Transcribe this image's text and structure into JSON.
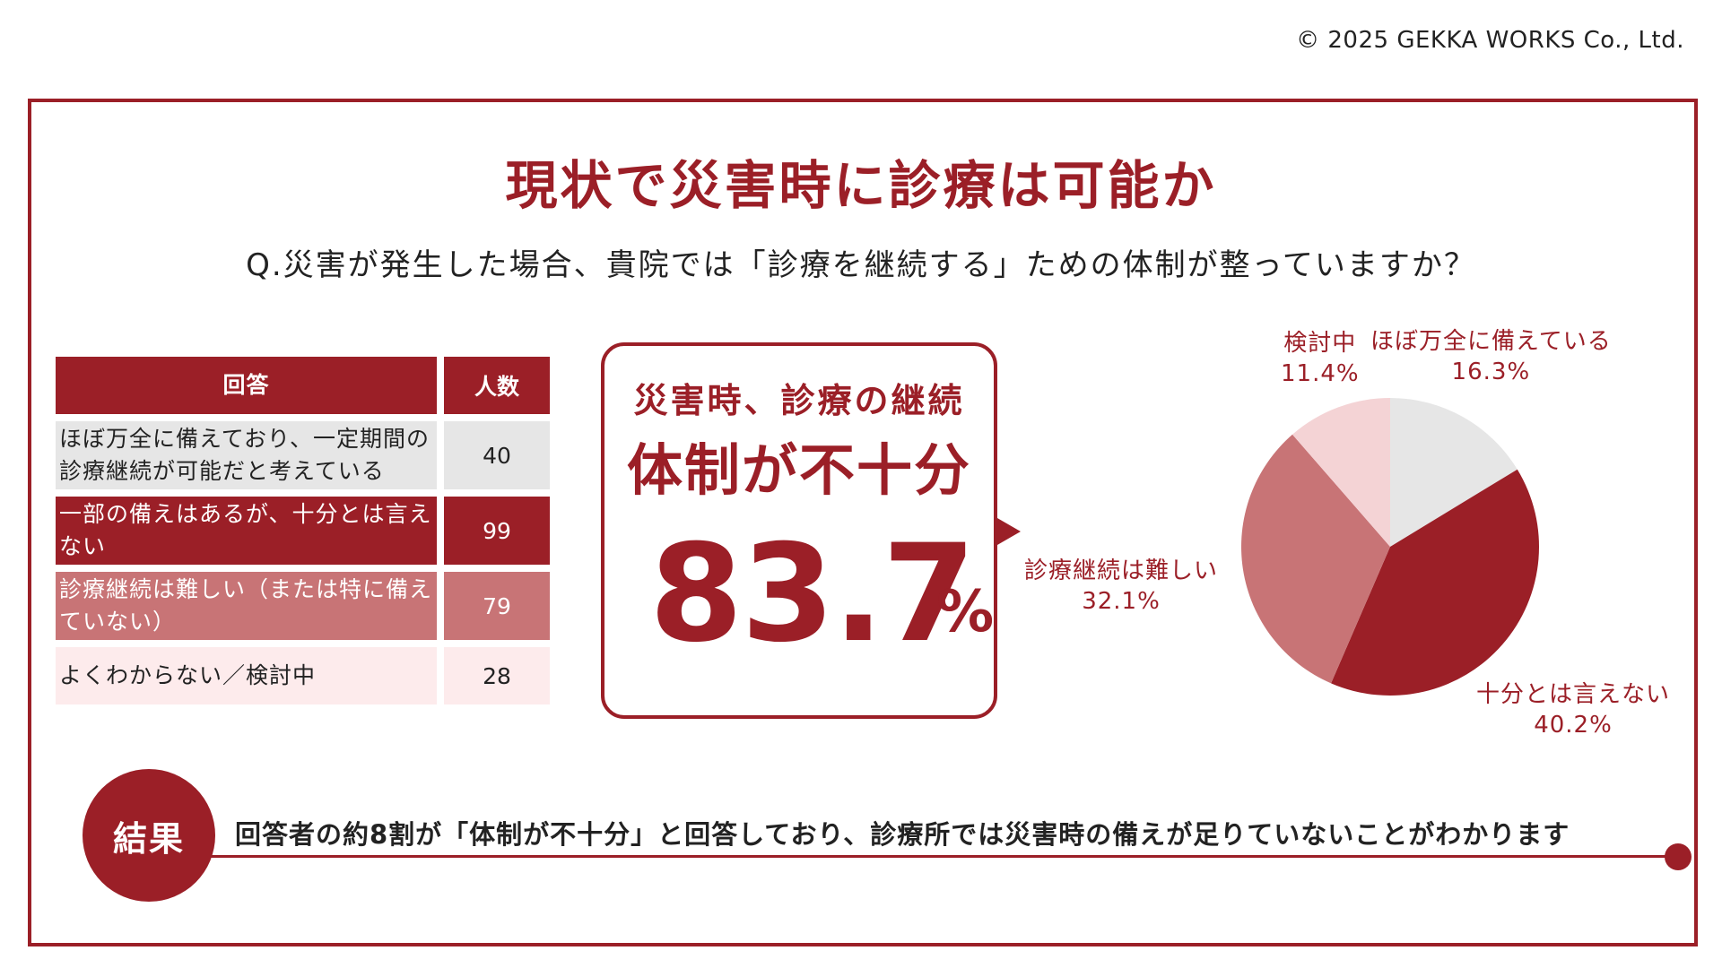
{
  "copyright": "© 2025 GEKKA WORKS Co., Ltd.",
  "title": "現状で災害時に診療は可能か",
  "question": "Q.災害が発生した場合、貴院では「診療を継続する」ための体制が整っていますか？",
  "table": {
    "headers": [
      "回答",
      "人数"
    ],
    "rows": [
      {
        "answer": "ほぼ万全に備えており、一定期間の診療継続が可能だと考えている",
        "count": "40"
      },
      {
        "answer": "一部の備えはあるが、十分とは言えない",
        "count": "99"
      },
      {
        "answer": "診療継続は難しい（または特に備えていない）",
        "count": "79"
      },
      {
        "answer": "よくわからない／検討中",
        "count": "28"
      }
    ]
  },
  "callout": {
    "line1": "災害時、診療の継続",
    "line2": "体制が不十分",
    "value": "83.7",
    "unit": "%"
  },
  "chart_data": {
    "type": "pie",
    "slices": [
      {
        "label": "ほぼ万全に備えている",
        "value": 16.3,
        "display": "16.3%",
        "color": "#e6e6e6"
      },
      {
        "label": "十分とは言えない",
        "value": 40.2,
        "display": "40.2%",
        "color": "#9b1f27"
      },
      {
        "label": "診療継続は難しい",
        "value": 32.1,
        "display": "32.1%",
        "color": "#c87476"
      },
      {
        "label": "検討中",
        "value": 11.4,
        "display": "11.4%",
        "color": "#f4d3d5"
      }
    ]
  },
  "result": {
    "badge": "結果",
    "text": "回答者の約8割が「体制が不十分」と回答しており、診療所では災害時の備えが足りていないことがわかります"
  },
  "colors": {
    "accent": "#9b1f27"
  }
}
